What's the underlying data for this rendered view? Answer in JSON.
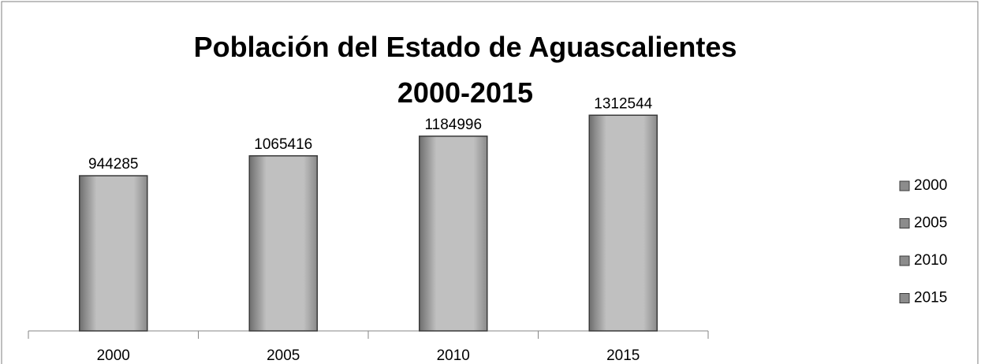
{
  "chart_data": {
    "type": "bar",
    "title": "Población del Estado de Aguascalientes 2000-2015",
    "categories": [
      "2000",
      "2005",
      "2010",
      "2015"
    ],
    "values": [
      944285,
      1065416,
      1184996,
      1312544
    ],
    "color": "#c0c0c0",
    "ylim": [
      0,
      1400000
    ],
    "legend": "right"
  }
}
